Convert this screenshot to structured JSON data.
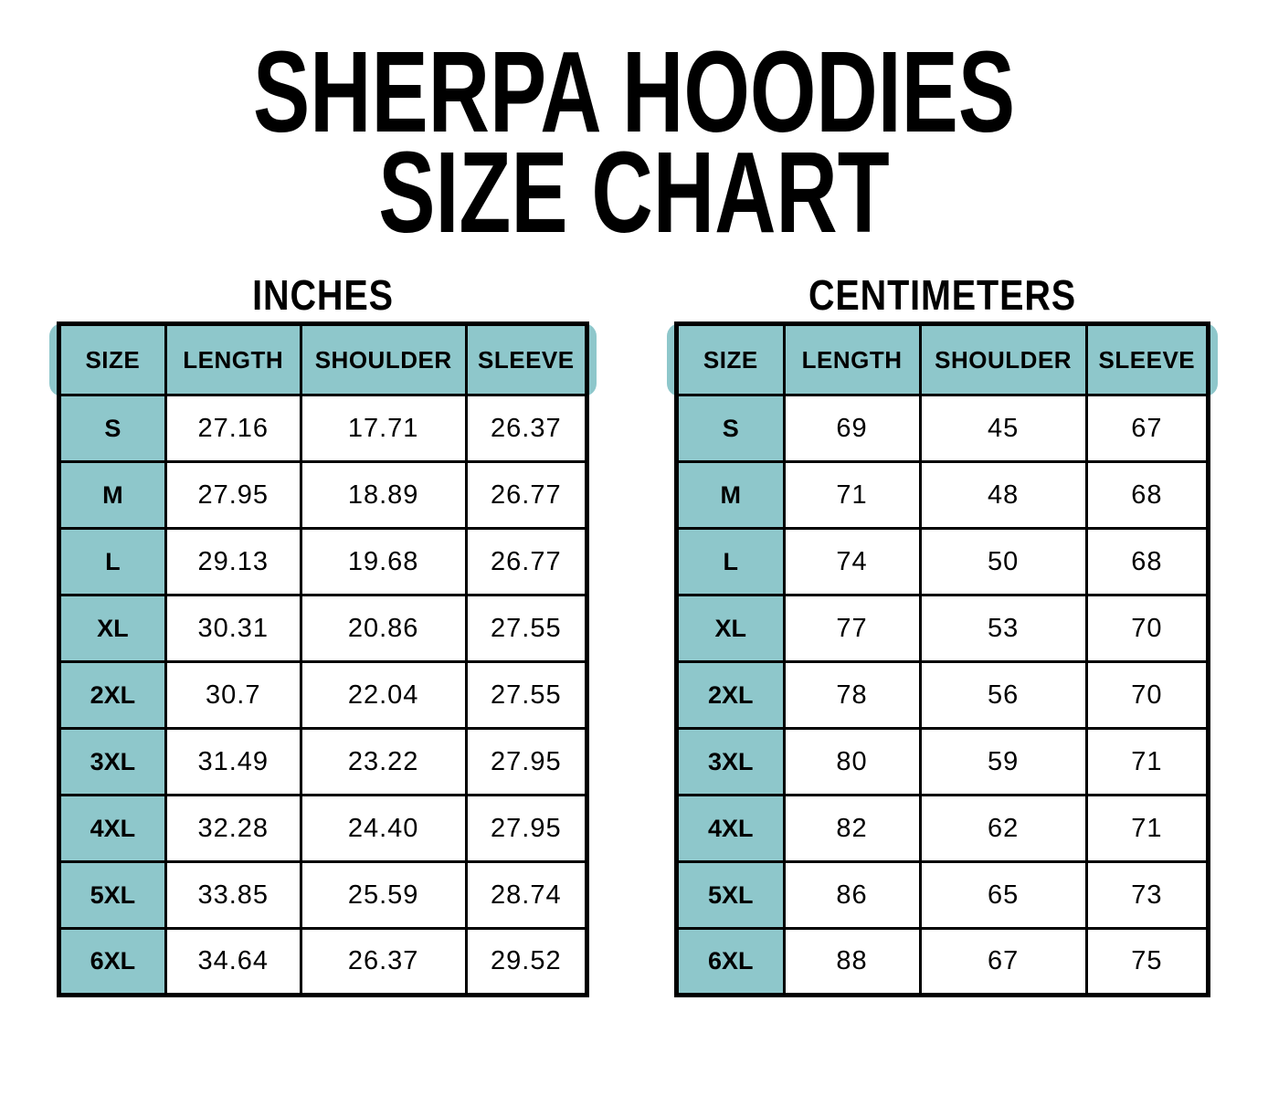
{
  "title": {
    "line1": "SHERPA HOODIES",
    "line2": "SIZE CHART"
  },
  "colors": {
    "header_teal": "#8EC7CB",
    "border": "#000000",
    "background": "#FFFFFF",
    "text": "#000000"
  },
  "tables": [
    {
      "unit_label": "INCHES",
      "columns": [
        "SIZE",
        "LENGTH",
        "SHOULDER",
        "SLEEVE"
      ],
      "rows": [
        [
          "S",
          "27.16",
          "17.71",
          "26.37"
        ],
        [
          "M",
          "27.95",
          "18.89",
          "26.77"
        ],
        [
          "L",
          "29.13",
          "19.68",
          "26.77"
        ],
        [
          "XL",
          "30.31",
          "20.86",
          "27.55"
        ],
        [
          "2XL",
          "30.7",
          "22.04",
          "27.55"
        ],
        [
          "3XL",
          "31.49",
          "23.22",
          "27.95"
        ],
        [
          "4XL",
          "32.28",
          "24.40",
          "27.95"
        ],
        [
          "5XL",
          "33.85",
          "25.59",
          "28.74"
        ],
        [
          "6XL",
          "34.64",
          "26.37",
          "29.52"
        ]
      ]
    },
    {
      "unit_label": "CENTIMETERS",
      "columns": [
        "SIZE",
        "LENGTH",
        "SHOULDER",
        "SLEEVE"
      ],
      "rows": [
        [
          "S",
          "69",
          "45",
          "67"
        ],
        [
          "M",
          "71",
          "48",
          "68"
        ],
        [
          "L",
          "74",
          "50",
          "68"
        ],
        [
          "XL",
          "77",
          "53",
          "70"
        ],
        [
          "2XL",
          "78",
          "56",
          "70"
        ],
        [
          "3XL",
          "80",
          "59",
          "71"
        ],
        [
          "4XL",
          "82",
          "62",
          "71"
        ],
        [
          "5XL",
          "86",
          "65",
          "73"
        ],
        [
          "6XL",
          "88",
          "67",
          "75"
        ]
      ]
    }
  ],
  "chart_data": [
    {
      "type": "table",
      "title": "SHERPA HOODIES SIZE CHART — INCHES",
      "columns": [
        "SIZE",
        "LENGTH",
        "SHOULDER",
        "SLEEVE"
      ],
      "rows": [
        [
          "S",
          27.16,
          17.71,
          26.37
        ],
        [
          "M",
          27.95,
          18.89,
          26.77
        ],
        [
          "L",
          29.13,
          19.68,
          26.77
        ],
        [
          "XL",
          30.31,
          20.86,
          27.55
        ],
        [
          "2XL",
          30.7,
          22.04,
          27.55
        ],
        [
          "3XL",
          31.49,
          23.22,
          27.95
        ],
        [
          "4XL",
          32.28,
          24.4,
          27.95
        ],
        [
          "5XL",
          33.85,
          25.59,
          28.74
        ],
        [
          "6XL",
          34.64,
          26.37,
          29.52
        ]
      ]
    },
    {
      "type": "table",
      "title": "SHERPA HOODIES SIZE CHART — CENTIMETERS",
      "columns": [
        "SIZE",
        "LENGTH",
        "SHOULDER",
        "SLEEVE"
      ],
      "rows": [
        [
          "S",
          69,
          45,
          67
        ],
        [
          "M",
          71,
          48,
          68
        ],
        [
          "L",
          74,
          50,
          68
        ],
        [
          "XL",
          77,
          53,
          70
        ],
        [
          "2XL",
          78,
          56,
          70
        ],
        [
          "3XL",
          80,
          59,
          71
        ],
        [
          "4XL",
          82,
          62,
          71
        ],
        [
          "5XL",
          86,
          65,
          73
        ],
        [
          "6XL",
          88,
          67,
          75
        ]
      ]
    }
  ]
}
